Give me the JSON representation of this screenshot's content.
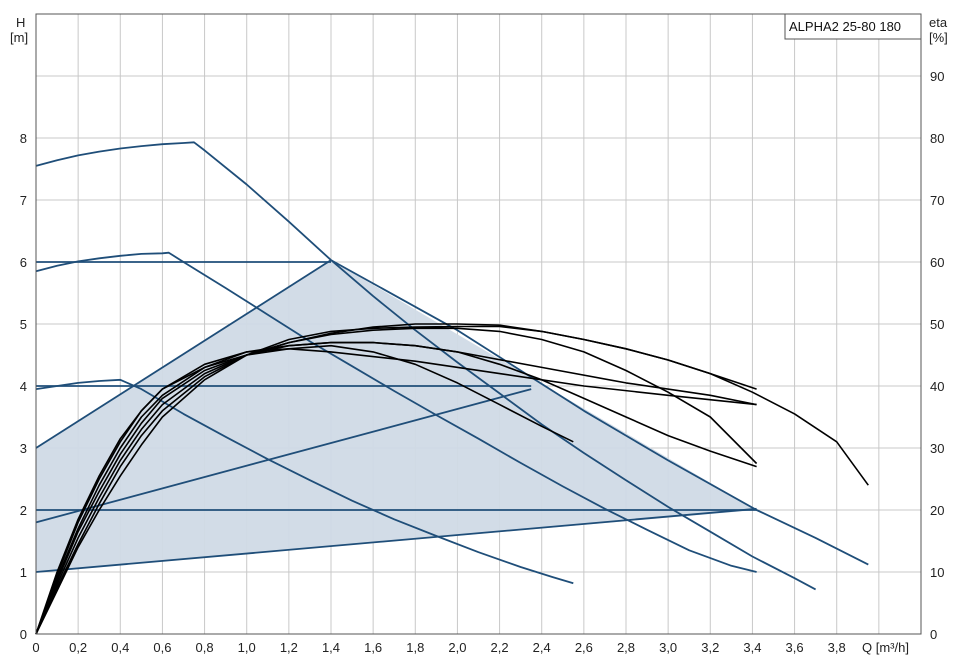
{
  "chart_data": {
    "type": "line",
    "title": "ALPHA2 25-80 180",
    "xlabel": "Q [m³/h]",
    "ylabel_left": [
      "H",
      "[m]"
    ],
    "ylabel_right": [
      "eta",
      "[%]"
    ],
    "xlim": [
      0,
      4.2
    ],
    "ylim_left": [
      0,
      10
    ],
    "ylim_right": [
      0,
      100
    ],
    "x_ticks": [
      "0",
      "0,2",
      "0,4",
      "0,6",
      "0,8",
      "1,0",
      "1,2",
      "1,4",
      "1,6",
      "1,8",
      "2,0",
      "2,2",
      "2,4",
      "2,6",
      "2,8",
      "3,0",
      "3,2",
      "3,4",
      "3,6",
      "3,8"
    ],
    "y_left_ticks": [
      "0",
      "1",
      "2",
      "3",
      "4",
      "5",
      "6",
      "7",
      "8"
    ],
    "y_right_ticks": [
      "0",
      "10",
      "20",
      "30",
      "40",
      "50",
      "60",
      "70",
      "80",
      "90"
    ],
    "grid": true,
    "colors": {
      "head": "#1f4e79",
      "efficiency": "#000000",
      "area": "#d0dae6",
      "grid": "#c8c8c8"
    },
    "operating_area": {
      "name": "",
      "points": [
        [
          0,
          1.0
        ],
        [
          0,
          3.0
        ],
        [
          1.4,
          6.03
        ],
        [
          3.42,
          2.0
        ],
        [
          3.42,
          2.0
        ],
        [
          0,
          1.0
        ]
      ]
    },
    "head_curves": [
      {
        "name": "",
        "points": [
          [
            0,
            7.55
          ],
          [
            0.1,
            7.64
          ],
          [
            0.2,
            7.72
          ],
          [
            0.3,
            7.78
          ],
          [
            0.4,
            7.83
          ],
          [
            0.5,
            7.87
          ],
          [
            0.6,
            7.9
          ],
          [
            0.7,
            7.92
          ],
          [
            0.75,
            7.93
          ],
          [
            0.8,
            7.8
          ],
          [
            1.0,
            7.25
          ],
          [
            1.2,
            6.65
          ],
          [
            1.4,
            6.03
          ],
          [
            1.6,
            5.45
          ],
          [
            1.8,
            4.9
          ],
          [
            2.0,
            4.38
          ],
          [
            2.2,
            3.88
          ],
          [
            2.4,
            3.38
          ],
          [
            2.6,
            2.92
          ],
          [
            2.8,
            2.48
          ],
          [
            3.0,
            2.05
          ],
          [
            3.2,
            1.65
          ],
          [
            3.4,
            1.25
          ],
          [
            3.6,
            0.9
          ],
          [
            3.7,
            0.72
          ]
        ]
      },
      {
        "name": "",
        "points": [
          [
            0,
            5.85
          ],
          [
            0.1,
            5.94
          ],
          [
            0.2,
            6.01
          ],
          [
            0.3,
            6.06
          ],
          [
            0.4,
            6.1
          ],
          [
            0.5,
            6.13
          ],
          [
            0.6,
            6.14
          ],
          [
            0.63,
            6.15
          ],
          [
            0.7,
            6.0
          ],
          [
            0.9,
            5.58
          ],
          [
            1.1,
            5.15
          ],
          [
            1.3,
            4.72
          ],
          [
            1.5,
            4.32
          ],
          [
            1.7,
            3.92
          ],
          [
            1.9,
            3.53
          ],
          [
            2.1,
            3.15
          ],
          [
            2.3,
            2.76
          ],
          [
            2.5,
            2.38
          ],
          [
            2.7,
            2.02
          ],
          [
            2.9,
            1.68
          ],
          [
            3.1,
            1.35
          ],
          [
            3.3,
            1.1
          ],
          [
            3.42,
            1.0
          ]
        ]
      },
      {
        "name": "",
        "points": [
          [
            0,
            3.95
          ],
          [
            0.1,
            4.0
          ],
          [
            0.2,
            4.05
          ],
          [
            0.3,
            4.08
          ],
          [
            0.4,
            4.1
          ],
          [
            0.5,
            3.95
          ],
          [
            0.7,
            3.55
          ],
          [
            0.9,
            3.18
          ],
          [
            1.1,
            2.82
          ],
          [
            1.3,
            2.48
          ],
          [
            1.5,
            2.15
          ],
          [
            1.7,
            1.85
          ],
          [
            1.9,
            1.58
          ],
          [
            2.1,
            1.32
          ],
          [
            2.3,
            1.08
          ],
          [
            2.45,
            0.92
          ],
          [
            2.55,
            0.82
          ]
        ]
      },
      {
        "name": "",
        "points": [
          [
            0,
            6.0
          ],
          [
            1.4,
            6.0
          ]
        ]
      },
      {
        "name": "",
        "points": [
          [
            0,
            4.0
          ],
          [
            2.35,
            4.0
          ]
        ]
      },
      {
        "name": "",
        "points": [
          [
            0,
            2.0
          ],
          [
            3.42,
            2.0
          ]
        ]
      },
      {
        "name": "",
        "points": [
          [
            0,
            3.0
          ],
          [
            1.4,
            6.03
          ]
        ]
      },
      {
        "name": "",
        "points": [
          [
            0,
            1.8
          ],
          [
            2.35,
            3.95
          ]
        ]
      },
      {
        "name": "",
        "points": [
          [
            0,
            1.0
          ],
          [
            3.42,
            2.02
          ]
        ]
      },
      {
        "name": "",
        "points": [
          [
            1.4,
            6.03
          ],
          [
            2.0,
            4.9
          ],
          [
            2.6,
            3.6
          ],
          [
            3.0,
            2.8
          ],
          [
            3.42,
            2.0
          ],
          [
            3.7,
            1.55
          ],
          [
            3.95,
            1.12
          ]
        ]
      }
    ],
    "efficiency_curves": [
      {
        "name": "",
        "points": [
          [
            0,
            0
          ],
          [
            0.1,
            10
          ],
          [
            0.2,
            18.5
          ],
          [
            0.3,
            25.5
          ],
          [
            0.4,
            31.5
          ],
          [
            0.5,
            36
          ],
          [
            0.6,
            39.5
          ],
          [
            0.8,
            43
          ],
          [
            1.0,
            45
          ],
          [
            1.2,
            46
          ],
          [
            1.4,
            46.5
          ],
          [
            1.6,
            45.5
          ],
          [
            1.8,
            43.5
          ],
          [
            2.0,
            40.5
          ],
          [
            2.2,
            37
          ],
          [
            2.4,
            33.5
          ],
          [
            2.55,
            31
          ]
        ]
      },
      {
        "name": "",
        "points": [
          [
            0,
            0
          ],
          [
            0.1,
            9
          ],
          [
            0.2,
            17
          ],
          [
            0.3,
            24
          ],
          [
            0.4,
            30
          ],
          [
            0.5,
            35
          ],
          [
            0.6,
            38.5
          ],
          [
            0.8,
            43
          ],
          [
            1.0,
            45.5
          ],
          [
            1.2,
            46.5
          ],
          [
            1.4,
            47
          ],
          [
            1.6,
            47
          ],
          [
            1.8,
            46.5
          ],
          [
            2.0,
            45.5
          ],
          [
            2.2,
            43.5
          ],
          [
            2.4,
            41
          ],
          [
            2.6,
            38
          ],
          [
            2.8,
            35
          ],
          [
            3.0,
            32
          ],
          [
            3.2,
            29.5
          ],
          [
            3.42,
            27
          ]
        ]
      },
      {
        "name": "",
        "points": [
          [
            0,
            0
          ],
          [
            0.1,
            8
          ],
          [
            0.2,
            15.5
          ],
          [
            0.3,
            22
          ],
          [
            0.4,
            28
          ],
          [
            0.5,
            33
          ],
          [
            0.6,
            37
          ],
          [
            0.8,
            42
          ],
          [
            1.0,
            45
          ],
          [
            1.2,
            47
          ],
          [
            1.4,
            48.5
          ],
          [
            1.6,
            49.5
          ],
          [
            1.8,
            50
          ],
          [
            2.0,
            50
          ],
          [
            2.2,
            49.8
          ],
          [
            2.4,
            48.8
          ],
          [
            2.6,
            47.5
          ],
          [
            2.8,
            46
          ],
          [
            3.0,
            44.2
          ],
          [
            3.2,
            42
          ],
          [
            3.4,
            39
          ],
          [
            3.6,
            35.5
          ],
          [
            3.8,
            31
          ],
          [
            3.95,
            24
          ]
        ]
      },
      {
        "name": "",
        "points": [
          [
            0,
            0
          ],
          [
            0.1,
            8.5
          ],
          [
            0.2,
            16.5
          ],
          [
            0.3,
            23
          ],
          [
            0.4,
            29
          ],
          [
            0.5,
            34
          ],
          [
            0.6,
            38
          ],
          [
            0.8,
            42.5
          ],
          [
            1.0,
            45
          ],
          [
            1.2,
            46.5
          ],
          [
            1.4,
            47
          ],
          [
            1.6,
            47
          ],
          [
            1.8,
            46.5
          ],
          [
            2.0,
            45.5
          ],
          [
            2.4,
            43
          ],
          [
            2.8,
            40.5
          ],
          [
            3.2,
            38.5
          ],
          [
            3.42,
            37
          ]
        ]
      },
      {
        "name": "",
        "points": [
          [
            0,
            0
          ],
          [
            0.1,
            9.5
          ],
          [
            0.2,
            18
          ],
          [
            0.3,
            25
          ],
          [
            0.4,
            31
          ],
          [
            0.5,
            36
          ],
          [
            0.6,
            39.5
          ],
          [
            0.8,
            43.5
          ],
          [
            1.0,
            45.5
          ],
          [
            1.2,
            46
          ],
          [
            1.4,
            45.5
          ],
          [
            1.8,
            44
          ],
          [
            2.2,
            42
          ],
          [
            2.6,
            40
          ],
          [
            3.0,
            38.5
          ],
          [
            3.42,
            37
          ]
        ]
      },
      {
        "name": "",
        "points": [
          [
            0,
            0
          ],
          [
            0.1,
            7
          ],
          [
            0.2,
            14
          ],
          [
            0.3,
            20
          ],
          [
            0.4,
            25.5
          ],
          [
            0.5,
            30.5
          ],
          [
            0.6,
            35
          ],
          [
            0.8,
            41
          ],
          [
            1.0,
            45
          ],
          [
            1.2,
            47.5
          ],
          [
            1.4,
            48.8
          ],
          [
            1.6,
            49.3
          ],
          [
            1.8,
            49.5
          ],
          [
            2.0,
            49.6
          ],
          [
            2.2,
            49.6
          ],
          [
            2.4,
            48.8
          ],
          [
            2.6,
            47.5
          ],
          [
            2.8,
            46
          ],
          [
            3.0,
            44.2
          ],
          [
            3.2,
            42
          ],
          [
            3.42,
            39.5
          ]
        ]
      },
      {
        "name": "",
        "points": [
          [
            0,
            0
          ],
          [
            0.1,
            7.5
          ],
          [
            0.2,
            14.5
          ],
          [
            0.3,
            21
          ],
          [
            0.4,
            27
          ],
          [
            0.5,
            32
          ],
          [
            0.6,
            36
          ],
          [
            0.8,
            41.5
          ],
          [
            1.0,
            45
          ],
          [
            1.2,
            47
          ],
          [
            1.4,
            48.3
          ],
          [
            1.6,
            49
          ],
          [
            1.8,
            49.3
          ],
          [
            2.0,
            49.3
          ],
          [
            2.2,
            48.8
          ],
          [
            2.4,
            47.5
          ],
          [
            2.6,
            45.5
          ],
          [
            2.8,
            42.5
          ],
          [
            3.0,
            39
          ],
          [
            3.2,
            35
          ],
          [
            3.42,
            27.5
          ]
        ]
      }
    ]
  }
}
